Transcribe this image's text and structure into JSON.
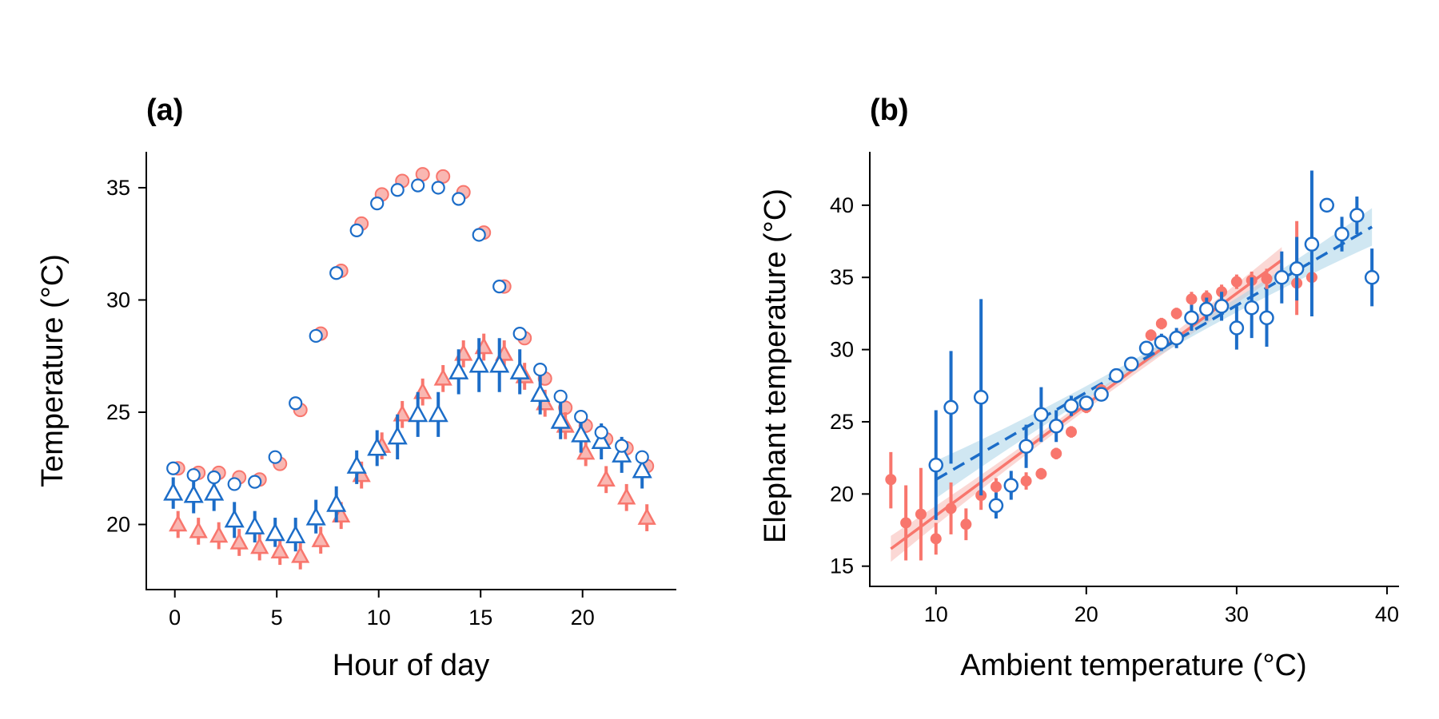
{
  "colors": {
    "red": "#F8766D",
    "red_light": "#F9B7B2",
    "blue": "#1C6DC8",
    "band_red": "#F8B8B3",
    "band_blue": "#A9D3E8"
  },
  "chart_data": [
    {
      "type": "scatter",
      "panel_label": "(a)",
      "xlabel": "Hour of day",
      "ylabel": "Temperature (°C)",
      "xlim": [
        -1.4,
        24.6
      ],
      "ylim": [
        17.1,
        36.6
      ],
      "xticks": [
        0,
        5,
        10,
        15,
        20
      ],
      "yticks": [
        20,
        25,
        30,
        35
      ],
      "grid": false,
      "legend": "none",
      "series": [
        {
          "marker": "circle",
          "color": "red",
          "fill": "red_light",
          "points": [
            {
              "x": 0,
              "y": 22.5
            },
            {
              "x": 1,
              "y": 22.3
            },
            {
              "x": 2,
              "y": 22.3
            },
            {
              "x": 3,
              "y": 22.1
            },
            {
              "x": 4,
              "y": 22.0
            },
            {
              "x": 5,
              "y": 22.7
            },
            {
              "x": 6,
              "y": 25.1
            },
            {
              "x": 7,
              "y": 28.5
            },
            {
              "x": 8,
              "y": 31.3
            },
            {
              "x": 9,
              "y": 33.4
            },
            {
              "x": 10,
              "y": 34.7
            },
            {
              "x": 11,
              "y": 35.3
            },
            {
              "x": 12,
              "y": 35.6
            },
            {
              "x": 13,
              "y": 35.5
            },
            {
              "x": 14,
              "y": 34.8
            },
            {
              "x": 15,
              "y": 33.0
            },
            {
              "x": 16,
              "y": 30.6
            },
            {
              "x": 17,
              "y": 28.3
            },
            {
              "x": 18,
              "y": 26.5
            },
            {
              "x": 19,
              "y": 25.2
            },
            {
              "x": 20,
              "y": 24.4
            },
            {
              "x": 21,
              "y": 23.8
            },
            {
              "x": 22,
              "y": 23.4
            },
            {
              "x": 23,
              "y": 22.6
            }
          ]
        },
        {
          "marker": "circle",
          "color": "blue",
          "fill": "white",
          "points": [
            {
              "x": 0,
              "y": 22.5
            },
            {
              "x": 1,
              "y": 22.2
            },
            {
              "x": 2,
              "y": 22.1
            },
            {
              "x": 3,
              "y": 21.8
            },
            {
              "x": 4,
              "y": 21.9
            },
            {
              "x": 5,
              "y": 23.0
            },
            {
              "x": 6,
              "y": 25.4
            },
            {
              "x": 7,
              "y": 28.4
            },
            {
              "x": 8,
              "y": 31.2
            },
            {
              "x": 9,
              "y": 33.1
            },
            {
              "x": 10,
              "y": 34.3
            },
            {
              "x": 11,
              "y": 34.9
            },
            {
              "x": 12,
              "y": 35.1
            },
            {
              "x": 13,
              "y": 35.0
            },
            {
              "x": 14,
              "y": 34.5
            },
            {
              "x": 15,
              "y": 32.9
            },
            {
              "x": 16,
              "y": 30.6
            },
            {
              "x": 17,
              "y": 28.5
            },
            {
              "x": 18,
              "y": 26.9
            },
            {
              "x": 19,
              "y": 25.7
            },
            {
              "x": 20,
              "y": 24.8
            },
            {
              "x": 21,
              "y": 24.1
            },
            {
              "x": 22,
              "y": 23.5
            },
            {
              "x": 23,
              "y": 23.0
            }
          ]
        },
        {
          "marker": "triangle",
          "color": "red",
          "fill": "red_light",
          "points": [
            {
              "x": 0,
              "y": 20.0,
              "lo": 19.4,
              "hi": 20.6
            },
            {
              "x": 1,
              "y": 19.7,
              "lo": 19.1,
              "hi": 20.3
            },
            {
              "x": 2,
              "y": 19.5,
              "lo": 18.9,
              "hi": 20.1
            },
            {
              "x": 3,
              "y": 19.2,
              "lo": 18.6,
              "hi": 19.8
            },
            {
              "x": 4,
              "y": 19.0,
              "lo": 18.4,
              "hi": 19.6
            },
            {
              "x": 5,
              "y": 18.8,
              "lo": 18.2,
              "hi": 19.4
            },
            {
              "x": 6,
              "y": 18.6,
              "lo": 18.0,
              "hi": 19.2
            },
            {
              "x": 7,
              "y": 19.3,
              "lo": 18.7,
              "hi": 19.9
            },
            {
              "x": 8,
              "y": 20.4,
              "lo": 19.8,
              "hi": 21.0
            },
            {
              "x": 9,
              "y": 22.2,
              "lo": 21.6,
              "hi": 22.8
            },
            {
              "x": 10,
              "y": 23.5,
              "lo": 22.9,
              "hi": 24.1
            },
            {
              "x": 11,
              "y": 24.9,
              "lo": 24.3,
              "hi": 25.5
            },
            {
              "x": 12,
              "y": 25.9,
              "lo": 25.3,
              "hi": 26.5
            },
            {
              "x": 13,
              "y": 26.5,
              "lo": 25.9,
              "hi": 27.1
            },
            {
              "x": 14,
              "y": 27.6,
              "lo": 27.0,
              "hi": 28.2
            },
            {
              "x": 15,
              "y": 27.9,
              "lo": 27.3,
              "hi": 28.5
            },
            {
              "x": 16,
              "y": 27.6,
              "lo": 27.0,
              "hi": 28.2
            },
            {
              "x": 17,
              "y": 26.6,
              "lo": 26.0,
              "hi": 27.2
            },
            {
              "x": 18,
              "y": 25.4,
              "lo": 24.8,
              "hi": 26.0
            },
            {
              "x": 19,
              "y": 24.4,
              "lo": 23.8,
              "hi": 25.0
            },
            {
              "x": 20,
              "y": 23.2,
              "lo": 22.6,
              "hi": 23.8
            },
            {
              "x": 21,
              "y": 22.0,
              "lo": 21.4,
              "hi": 22.6
            },
            {
              "x": 22,
              "y": 21.2,
              "lo": 20.6,
              "hi": 21.8
            },
            {
              "x": 23,
              "y": 20.3,
              "lo": 19.7,
              "hi": 20.9
            }
          ]
        },
        {
          "marker": "triangle",
          "color": "blue",
          "fill": "white",
          "points": [
            {
              "x": 0,
              "y": 21.4,
              "lo": 20.7,
              "hi": 22.1
            },
            {
              "x": 1,
              "y": 21.3,
              "lo": 20.5,
              "hi": 22.1
            },
            {
              "x": 2,
              "y": 21.4,
              "lo": 20.6,
              "hi": 22.2
            },
            {
              "x": 3,
              "y": 20.2,
              "lo": 19.4,
              "hi": 21.0
            },
            {
              "x": 4,
              "y": 19.9,
              "lo": 19.2,
              "hi": 20.6
            },
            {
              "x": 5,
              "y": 19.6,
              "lo": 19.0,
              "hi": 20.3
            },
            {
              "x": 6,
              "y": 19.5,
              "lo": 18.8,
              "hi": 20.3
            },
            {
              "x": 7,
              "y": 20.3,
              "lo": 19.6,
              "hi": 21.1
            },
            {
              "x": 8,
              "y": 20.9,
              "lo": 20.1,
              "hi": 21.7
            },
            {
              "x": 9,
              "y": 22.6,
              "lo": 21.8,
              "hi": 23.3
            },
            {
              "x": 10,
              "y": 23.4,
              "lo": 22.6,
              "hi": 24.2
            },
            {
              "x": 11,
              "y": 23.9,
              "lo": 22.9,
              "hi": 24.9
            },
            {
              "x": 12,
              "y": 24.9,
              "lo": 23.9,
              "hi": 25.9
            },
            {
              "x": 13,
              "y": 24.9,
              "lo": 23.9,
              "hi": 25.9
            },
            {
              "x": 14,
              "y": 26.8,
              "lo": 25.8,
              "hi": 27.8
            },
            {
              "x": 15,
              "y": 27.1,
              "lo": 25.9,
              "hi": 28.3
            },
            {
              "x": 16,
              "y": 27.1,
              "lo": 25.9,
              "hi": 28.3
            },
            {
              "x": 17,
              "y": 26.8,
              "lo": 25.8,
              "hi": 27.8
            },
            {
              "x": 18,
              "y": 25.8,
              "lo": 24.9,
              "hi": 26.7
            },
            {
              "x": 19,
              "y": 24.6,
              "lo": 23.8,
              "hi": 25.5
            },
            {
              "x": 20,
              "y": 24.0,
              "lo": 23.2,
              "hi": 24.8
            },
            {
              "x": 21,
              "y": 23.7,
              "lo": 22.9,
              "hi": 24.5
            },
            {
              "x": 22,
              "y": 23.1,
              "lo": 22.3,
              "hi": 23.9
            },
            {
              "x": 23,
              "y": 22.4,
              "lo": 21.6,
              "hi": 23.2
            }
          ]
        }
      ]
    },
    {
      "type": "scatter",
      "panel_label": "(b)",
      "xlabel": "Ambient temperature (°C)",
      "ylabel": "Elephant temperature (°C)",
      "xlim": [
        5.6,
        40.8
      ],
      "ylim": [
        13.6,
        43.7
      ],
      "xticks": [
        10,
        20,
        30,
        40
      ],
      "yticks": [
        15,
        20,
        25,
        30,
        35,
        40
      ],
      "grid": false,
      "legend": "none",
      "fits": [
        {
          "color": "red",
          "style": "solid",
          "x0": 7,
          "y0": 16.2,
          "x1": 33,
          "y1": 36.2,
          "band": "band_red",
          "band_half_width_ends": 0.9,
          "band_half_width_mid": 0.35
        },
        {
          "color": "blue",
          "style": "dashed",
          "x0": 10,
          "y0": 21.0,
          "x1": 39,
          "y1": 38.5,
          "band": "band_blue",
          "band_half_width_ends": 1.3,
          "band_half_width_mid": 0.35
        }
      ],
      "series": [
        {
          "marker": "dot",
          "color": "red",
          "points": [
            {
              "x": 7,
              "y": 21.0,
              "lo": 19.0,
              "hi": 22.9
            },
            {
              "x": 8,
              "y": 18.0,
              "lo": 15.4,
              "hi": 20.6
            },
            {
              "x": 9,
              "y": 18.6,
              "lo": 15.4,
              "hi": 21.8
            },
            {
              "x": 10,
              "y": 16.9,
              "lo": 15.8,
              "hi": 18.0
            },
            {
              "x": 11,
              "y": 19.0,
              "lo": 17.2,
              "hi": 20.8
            },
            {
              "x": 12,
              "y": 17.9,
              "lo": 16.8,
              "hi": 19.0
            },
            {
              "x": 13,
              "y": 19.9,
              "lo": 18.9,
              "hi": 20.9
            },
            {
              "x": 14,
              "y": 20.5,
              "lo": 19.9,
              "hi": 21.1
            },
            {
              "x": 15,
              "y": 20.6,
              "lo": 20.0,
              "hi": 21.2
            },
            {
              "x": 16,
              "y": 20.9,
              "lo": 20.3,
              "hi": 21.5
            },
            {
              "x": 17,
              "y": 21.4,
              "lo": 21.0,
              "hi": 21.8
            },
            {
              "x": 18,
              "y": 22.8,
              "lo": 22.4,
              "hi": 23.2
            },
            {
              "x": 19,
              "y": 24.3,
              "lo": 23.9,
              "hi": 24.7
            },
            {
              "x": 20,
              "y": 26.0,
              "lo": 25.6,
              "hi": 26.4
            },
            {
              "x": 21,
              "y": 27.2,
              "lo": 26.8,
              "hi": 27.6
            },
            {
              "x": 22,
              "y": 28.2,
              "lo": 27.9,
              "hi": 28.5
            },
            {
              "x": 23,
              "y": 29.0,
              "lo": 28.7,
              "hi": 29.3
            },
            {
              "x": 24,
              "y": 30.2,
              "lo": 29.9,
              "hi": 30.5
            },
            {
              "x": 24.3,
              "y": 31.0,
              "lo": 30.6,
              "hi": 31.4
            },
            {
              "x": 25,
              "y": 31.8,
              "lo": 31.4,
              "hi": 32.2
            },
            {
              "x": 26,
              "y": 32.5,
              "lo": 32.1,
              "hi": 32.9
            },
            {
              "x": 27,
              "y": 33.5,
              "lo": 33.0,
              "hi": 34.0
            },
            {
              "x": 28,
              "y": 33.6,
              "lo": 33.1,
              "hi": 34.1
            },
            {
              "x": 29,
              "y": 34.0,
              "lo": 33.5,
              "hi": 34.5
            },
            {
              "x": 30,
              "y": 34.7,
              "lo": 34.2,
              "hi": 35.2
            },
            {
              "x": 31,
              "y": 34.8,
              "lo": 34.2,
              "hi": 35.4
            },
            {
              "x": 32,
              "y": 34.9,
              "lo": 34.2,
              "hi": 35.6
            },
            {
              "x": 33,
              "y": 35.0,
              "lo": 34.2,
              "hi": 35.8
            },
            {
              "x": 34,
              "y": 34.6,
              "lo": 32.4,
              "hi": 38.9
            },
            {
              "x": 35,
              "y": 35.0,
              "lo": 34.3,
              "hi": 35.7
            }
          ]
        },
        {
          "marker": "circle",
          "color": "blue",
          "fill": "white",
          "points": [
            {
              "x": 10,
              "y": 22.0,
              "lo": 18.2,
              "hi": 25.8
            },
            {
              "x": 11,
              "y": 26.0,
              "lo": 22.1,
              "hi": 29.9
            },
            {
              "x": 13,
              "y": 26.7,
              "lo": 19.9,
              "hi": 33.5
            },
            {
              "x": 14,
              "y": 19.2,
              "lo": 18.3,
              "hi": 20.1
            },
            {
              "x": 15,
              "y": 20.6,
              "lo": 19.6,
              "hi": 21.6
            },
            {
              "x": 16,
              "y": 23.3,
              "lo": 21.8,
              "hi": 24.8
            },
            {
              "x": 17,
              "y": 25.5,
              "lo": 23.6,
              "hi": 27.4
            },
            {
              "x": 18,
              "y": 24.7,
              "lo": 23.6,
              "hi": 25.8
            },
            {
              "x": 19,
              "y": 26.1,
              "lo": 25.4,
              "hi": 26.8
            },
            {
              "x": 20,
              "y": 26.3,
              "lo": 25.8,
              "hi": 26.8
            },
            {
              "x": 21,
              "y": 26.9,
              "lo": 26.5,
              "hi": 27.3
            },
            {
              "x": 22,
              "y": 28.2,
              "lo": 27.8,
              "hi": 28.6
            },
            {
              "x": 23,
              "y": 29.0,
              "lo": 28.6,
              "hi": 29.4
            },
            {
              "x": 24,
              "y": 30.1,
              "lo": 29.6,
              "hi": 30.6
            },
            {
              "x": 25,
              "y": 30.5,
              "lo": 29.9,
              "hi": 31.1
            },
            {
              "x": 26,
              "y": 30.8,
              "lo": 30.1,
              "hi": 31.5
            },
            {
              "x": 27,
              "y": 32.2,
              "lo": 31.3,
              "hi": 33.1
            },
            {
              "x": 28,
              "y": 32.8,
              "lo": 32.0,
              "hi": 33.6
            },
            {
              "x": 29,
              "y": 33.0,
              "lo": 32.0,
              "hi": 34.0
            },
            {
              "x": 30,
              "y": 31.5,
              "lo": 30.0,
              "hi": 33.0
            },
            {
              "x": 31,
              "y": 32.9,
              "lo": 30.8,
              "hi": 35.0
            },
            {
              "x": 32,
              "y": 32.2,
              "lo": 30.2,
              "hi": 34.2
            },
            {
              "x": 33,
              "y": 35.0,
              "lo": 33.2,
              "hi": 36.8
            },
            {
              "x": 34,
              "y": 35.6,
              "lo": 33.4,
              "hi": 37.8
            },
            {
              "x": 35,
              "y": 37.3,
              "lo": 32.3,
              "hi": 42.4
            },
            {
              "x": 36,
              "y": 40.0,
              "lo": 40.0,
              "hi": 40.0
            },
            {
              "x": 37,
              "y": 38.0,
              "lo": 36.8,
              "hi": 39.2
            },
            {
              "x": 38,
              "y": 39.3,
              "lo": 38.0,
              "hi": 40.6
            },
            {
              "x": 39,
              "y": 35.0,
              "lo": 33.0,
              "hi": 37.0
            }
          ]
        }
      ]
    }
  ]
}
